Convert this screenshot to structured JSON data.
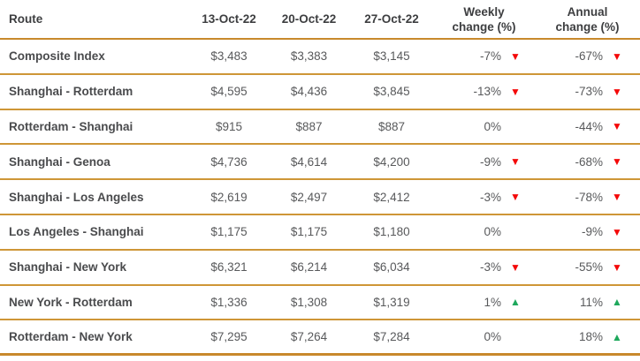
{
  "table": {
    "columns": {
      "route": "Route",
      "oct13": "13-Oct-22",
      "oct20": "20-Oct-22",
      "oct27": "27-Oct-22",
      "weekly": "Weekly change (%)",
      "annual": "Annual change (%)"
    }
  },
  "icons": {
    "down": "▼",
    "up": "▲"
  },
  "colors": {
    "accent_line": "#CE9637",
    "down_red": "#F40808",
    "up_green": "#1EA85C",
    "header_text": "#3D3E40",
    "value_text": "#58595B"
  },
  "rows": [
    {
      "route": "Composite Index",
      "oct13": "$3,483",
      "oct20": "$3,383",
      "oct27": "$3,145",
      "weekly": "-7%",
      "weekly_dir": "down",
      "annual": "-67%",
      "annual_dir": "down"
    },
    {
      "route": "Shanghai - Rotterdam",
      "oct13": "$4,595",
      "oct20": "$4,436",
      "oct27": "$3,845",
      "weekly": "-13%",
      "weekly_dir": "down",
      "annual": "-73%",
      "annual_dir": "down"
    },
    {
      "route": "Rotterdam - Shanghai",
      "oct13": "$915",
      "oct20": "$887",
      "oct27": "$887",
      "weekly": "0%",
      "weekly_dir": "",
      "annual": "-44%",
      "annual_dir": "down"
    },
    {
      "route": "Shanghai - Genoa",
      "oct13": "$4,736",
      "oct20": "$4,614",
      "oct27": "$4,200",
      "weekly": "-9%",
      "weekly_dir": "down",
      "annual": "-68%",
      "annual_dir": "down"
    },
    {
      "route": "Shanghai - Los Angeles",
      "oct13": "$2,619",
      "oct20": "$2,497",
      "oct27": "$2,412",
      "weekly": "-3%",
      "weekly_dir": "down",
      "annual": "-78%",
      "annual_dir": "down"
    },
    {
      "route": "Los Angeles - Shanghai",
      "oct13": "$1,175",
      "oct20": "$1,175",
      "oct27": "$1,180",
      "weekly": "0%",
      "weekly_dir": "",
      "annual": "-9%",
      "annual_dir": "down"
    },
    {
      "route": "Shanghai - New York",
      "oct13": "$6,321",
      "oct20": "$6,214",
      "oct27": "$6,034",
      "weekly": "-3%",
      "weekly_dir": "down",
      "annual": "-55%",
      "annual_dir": "down"
    },
    {
      "route": "New York - Rotterdam",
      "oct13": "$1,336",
      "oct20": "$1,308",
      "oct27": "$1,319",
      "weekly": "1%",
      "weekly_dir": "up",
      "annual": "11%",
      "annual_dir": "up"
    },
    {
      "route": "Rotterdam - New York",
      "oct13": "$7,295",
      "oct20": "$7,264",
      "oct27": "$7,284",
      "weekly": "0%",
      "weekly_dir": "",
      "annual": "18%",
      "annual_dir": "up"
    }
  ],
  "chart_data": {
    "type": "table",
    "columns": [
      "Route",
      "13-Oct-22",
      "20-Oct-22",
      "27-Oct-22",
      "Weekly change (%)",
      "Annual change (%)"
    ],
    "rows": [
      [
        "Composite Index",
        3483,
        3383,
        3145,
        -7,
        -67
      ],
      [
        "Shanghai - Rotterdam",
        4595,
        4436,
        3845,
        -13,
        -73
      ],
      [
        "Rotterdam - Shanghai",
        915,
        887,
        887,
        0,
        -44
      ],
      [
        "Shanghai - Genoa",
        4736,
        4614,
        4200,
        -9,
        -68
      ],
      [
        "Shanghai - Los Angeles",
        2619,
        2497,
        2412,
        -3,
        -78
      ],
      [
        "Los Angeles - Shanghai",
        1175,
        1175,
        1180,
        0,
        -9
      ],
      [
        "Shanghai - New York",
        6321,
        6214,
        6034,
        -3,
        -55
      ],
      [
        "New York - Rotterdam",
        1336,
        1308,
        1319,
        1,
        11
      ],
      [
        "Rotterdam - New York",
        7295,
        7264,
        7284,
        0,
        18
      ]
    ],
    "units": "USD per FEU, percent change"
  }
}
